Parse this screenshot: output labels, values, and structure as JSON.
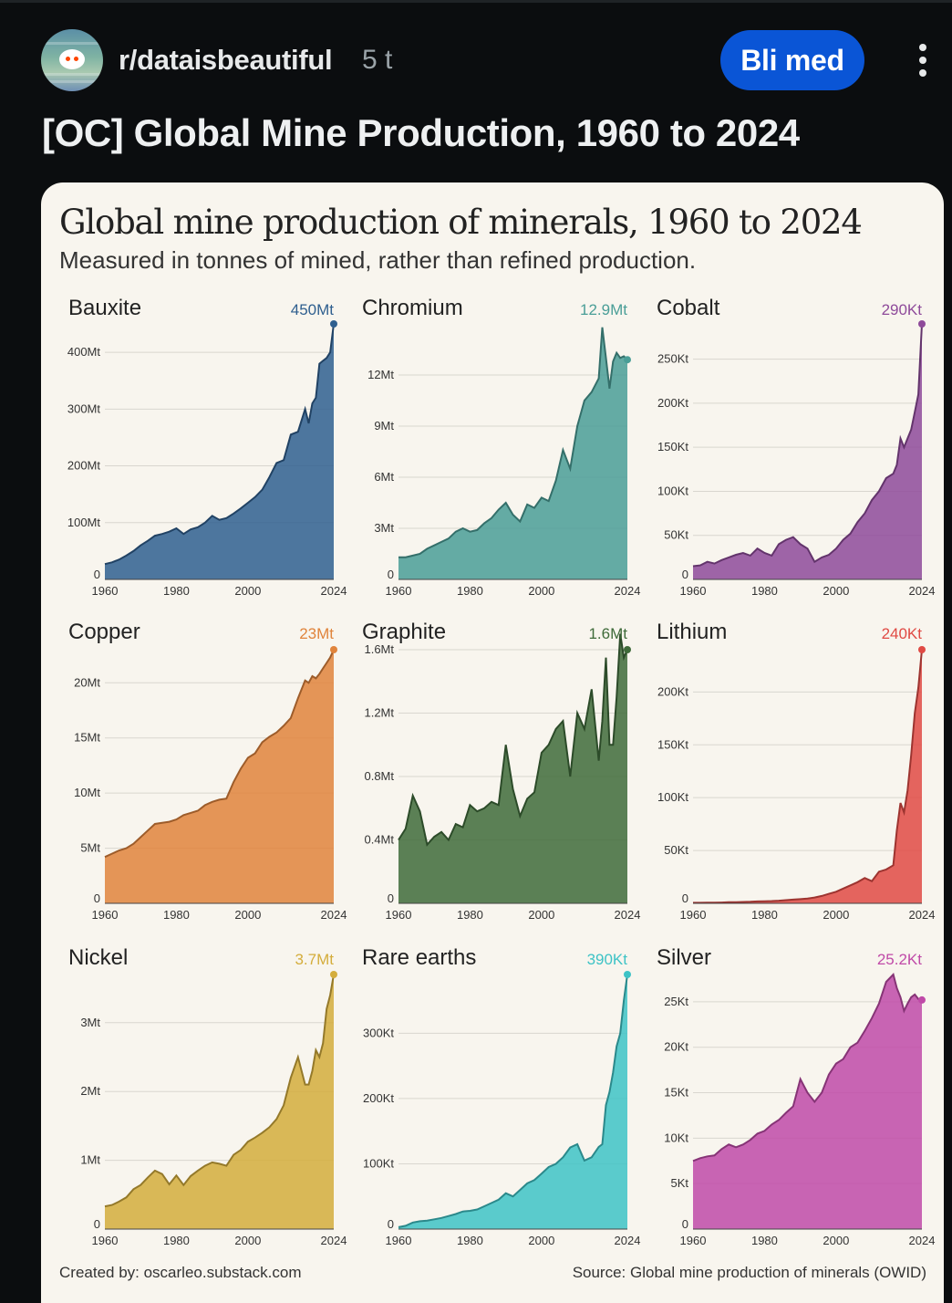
{
  "post": {
    "subreddit": "r/dataisbeautiful",
    "age": "5 t",
    "join_label": "Bli med",
    "title": "[OC] Global Mine Production, 1960 to 2024"
  },
  "figure": {
    "title": "Global mine production of minerals, 1960 to 2024",
    "subtitle": "Measured in tonnes of mined, rather than refined production.",
    "credit": "Created by: oscarleo.substack.com",
    "source": "Source: Global mine production of minerals (OWID)"
  },
  "chart_data": [
    {
      "type": "area",
      "name": "Bauxite",
      "latest_label": "450Mt",
      "color": "#2f5f8f",
      "x_range": [
        1960,
        2024
      ],
      "x_ticks": [
        "1960",
        "1980",
        "2000",
        "2024"
      ],
      "ylim": [
        0,
        450
      ],
      "y_ticks": [
        {
          "v": 0,
          "label": "0"
        },
        {
          "v": 100,
          "label": "100Mt"
        },
        {
          "v": 200,
          "label": "200Mt"
        },
        {
          "v": 300,
          "label": "300Mt"
        },
        {
          "v": 400,
          "label": "400Mt"
        }
      ],
      "series": [
        {
          "x": [
            1960,
            1962,
            1964,
            1966,
            1968,
            1970,
            1972,
            1974,
            1976,
            1978,
            1980,
            1982,
            1984,
            1986,
            1988,
            1990,
            1992,
            1994,
            1996,
            1998,
            2000,
            2002,
            2004,
            2006,
            2008,
            2010,
            2012,
            2014,
            2016,
            2017,
            2018,
            2019,
            2020,
            2021,
            2022,
            2023,
            2024
          ],
          "y": [
            27,
            30,
            35,
            42,
            50,
            60,
            68,
            77,
            80,
            84,
            90,
            80,
            88,
            92,
            100,
            112,
            105,
            108,
            116,
            125,
            135,
            145,
            158,
            180,
            205,
            210,
            255,
            260,
            300,
            275,
            310,
            320,
            380,
            385,
            390,
            400,
            450
          ]
        }
      ]
    },
    {
      "type": "area",
      "name": "Chromium",
      "latest_label": "12.9Mt",
      "color": "#4a9e97",
      "x_range": [
        1960,
        2024
      ],
      "x_ticks": [
        "1960",
        "1980",
        "2000",
        "2024"
      ],
      "ylim": [
        0,
        15
      ],
      "y_ticks": [
        {
          "v": 0,
          "label": "0"
        },
        {
          "v": 3,
          "label": "3Mt"
        },
        {
          "v": 6,
          "label": "6Mt"
        },
        {
          "v": 9,
          "label": "9Mt"
        },
        {
          "v": 12,
          "label": "12Mt"
        }
      ],
      "series": [
        {
          "x": [
            1960,
            1962,
            1964,
            1966,
            1968,
            1970,
            1972,
            1974,
            1976,
            1978,
            1980,
            1982,
            1984,
            1986,
            1988,
            1990,
            1992,
            1994,
            1996,
            1998,
            2000,
            2002,
            2004,
            2006,
            2008,
            2010,
            2012,
            2014,
            2016,
            2017,
            2018,
            2019,
            2020,
            2021,
            2022,
            2023,
            2024
          ],
          "y": [
            1.3,
            1.3,
            1.4,
            1.5,
            1.8,
            2.0,
            2.2,
            2.4,
            2.8,
            3.0,
            2.8,
            2.9,
            3.3,
            3.6,
            4.1,
            4.5,
            3.8,
            3.4,
            4.4,
            4.2,
            4.8,
            4.6,
            5.8,
            7.6,
            6.5,
            9.0,
            10.5,
            11.0,
            11.8,
            14.8,
            13.0,
            11.2,
            12.8,
            13.3,
            13.0,
            13.1,
            12.9
          ]
        }
      ]
    },
    {
      "type": "area",
      "name": "Cobalt",
      "latest_label": "290Kt",
      "color": "#8e4a9a",
      "x_range": [
        1960,
        2024
      ],
      "x_ticks": [
        "1960",
        "1980",
        "2000",
        "2024"
      ],
      "ylim": [
        0,
        290
      ],
      "y_ticks": [
        {
          "v": 0,
          "label": "0"
        },
        {
          "v": 50,
          "label": "50Kt"
        },
        {
          "v": 100,
          "label": "100Kt"
        },
        {
          "v": 150,
          "label": "150Kt"
        },
        {
          "v": 200,
          "label": "200Kt"
        },
        {
          "v": 250,
          "label": "250Kt"
        }
      ],
      "series": [
        {
          "x": [
            1960,
            1962,
            1964,
            1966,
            1968,
            1970,
            1972,
            1974,
            1976,
            1978,
            1980,
            1982,
            1984,
            1986,
            1988,
            1990,
            1992,
            1994,
            1996,
            1998,
            2000,
            2002,
            2004,
            2006,
            2008,
            2010,
            2012,
            2014,
            2016,
            2017,
            2018,
            2019,
            2020,
            2021,
            2022,
            2023,
            2024
          ],
          "y": [
            15,
            16,
            20,
            18,
            22,
            25,
            28,
            30,
            27,
            35,
            30,
            27,
            40,
            45,
            48,
            40,
            35,
            20,
            25,
            28,
            35,
            45,
            52,
            65,
            75,
            90,
            100,
            115,
            120,
            130,
            160,
            150,
            160,
            170,
            190,
            210,
            290
          ]
        }
      ]
    },
    {
      "type": "area",
      "name": "Copper",
      "latest_label": "23Mt",
      "color": "#e0843c",
      "x_range": [
        1960,
        2024
      ],
      "x_ticks": [
        "1960",
        "1980",
        "2000",
        "2024"
      ],
      "ylim": [
        0,
        23
      ],
      "y_ticks": [
        {
          "v": 0,
          "label": "0"
        },
        {
          "v": 5,
          "label": "5Mt"
        },
        {
          "v": 10,
          "label": "10Mt"
        },
        {
          "v": 15,
          "label": "15Mt"
        },
        {
          "v": 20,
          "label": "20Mt"
        }
      ],
      "series": [
        {
          "x": [
            1960,
            1962,
            1964,
            1966,
            1968,
            1970,
            1972,
            1974,
            1976,
            1978,
            1980,
            1982,
            1984,
            1986,
            1988,
            1990,
            1992,
            1994,
            1996,
            1998,
            2000,
            2002,
            2004,
            2006,
            2008,
            2010,
            2012,
            2014,
            2016,
            2017,
            2018,
            2019,
            2020,
            2021,
            2022,
            2023,
            2024
          ],
          "y": [
            4.2,
            4.5,
            4.8,
            5.0,
            5.4,
            6.0,
            6.6,
            7.2,
            7.3,
            7.4,
            7.6,
            8.0,
            8.2,
            8.4,
            8.9,
            9.2,
            9.4,
            9.5,
            11.0,
            12.2,
            13.2,
            13.6,
            14.6,
            15.1,
            15.5,
            16.1,
            16.8,
            18.6,
            20.2,
            20.0,
            20.6,
            20.4,
            20.8,
            21.3,
            21.8,
            22.3,
            23.0
          ]
        }
      ]
    },
    {
      "type": "area",
      "name": "Graphite",
      "latest_label": "1.6Mt",
      "color": "#3f6b3a",
      "x_range": [
        1960,
        2024
      ],
      "x_ticks": [
        "1960",
        "1980",
        "2000",
        "2024"
      ],
      "ylim": [
        0,
        1.6
      ],
      "y_ticks": [
        {
          "v": 0,
          "label": "0"
        },
        {
          "v": 0.4,
          "label": "0.4Mt"
        },
        {
          "v": 0.8,
          "label": "0.8Mt"
        },
        {
          "v": 1.2,
          "label": "1.2Mt"
        },
        {
          "v": 1.6,
          "label": "1.6Mt"
        }
      ],
      "series": [
        {
          "x": [
            1960,
            1962,
            1964,
            1966,
            1968,
            1970,
            1972,
            1974,
            1976,
            1978,
            1980,
            1982,
            1984,
            1986,
            1988,
            1990,
            1992,
            1994,
            1996,
            1998,
            2000,
            2002,
            2004,
            2006,
            2008,
            2010,
            2012,
            2014,
            2016,
            2017,
            2018,
            2019,
            2020,
            2021,
            2022,
            2023,
            2024
          ],
          "y": [
            0.4,
            0.47,
            0.68,
            0.58,
            0.37,
            0.42,
            0.45,
            0.4,
            0.5,
            0.48,
            0.62,
            0.58,
            0.6,
            0.64,
            0.62,
            1.0,
            0.72,
            0.55,
            0.66,
            0.7,
            0.95,
            1.0,
            1.1,
            1.15,
            0.8,
            1.2,
            1.1,
            1.35,
            0.9,
            1.15,
            1.55,
            1.0,
            1.0,
            1.3,
            1.7,
            1.55,
            1.6
          ]
        }
      ]
    },
    {
      "type": "area",
      "name": "Lithium",
      "latest_label": "240Kt",
      "color": "#e04a44",
      "x_range": [
        1960,
        2024
      ],
      "x_ticks": [
        "1960",
        "1980",
        "2000",
        "2024"
      ],
      "ylim": [
        0,
        240
      ],
      "y_ticks": [
        {
          "v": 0,
          "label": "0"
        },
        {
          "v": 50,
          "label": "50Kt"
        },
        {
          "v": 100,
          "label": "100Kt"
        },
        {
          "v": 150,
          "label": "150Kt"
        },
        {
          "v": 200,
          "label": "200Kt"
        }
      ],
      "series": [
        {
          "x": [
            1960,
            1962,
            1964,
            1966,
            1968,
            1970,
            1972,
            1974,
            1976,
            1978,
            1980,
            1982,
            1984,
            1986,
            1988,
            1990,
            1992,
            1994,
            1996,
            1998,
            2000,
            2002,
            2004,
            2006,
            2008,
            2010,
            2012,
            2014,
            2016,
            2017,
            2018,
            2019,
            2020,
            2021,
            2022,
            2023,
            2024
          ],
          "y": [
            0.5,
            0.5,
            0.6,
            0.6,
            0.8,
            1.0,
            1.1,
            1.3,
            1.5,
            1.8,
            2.0,
            2.2,
            2.5,
            3.0,
            3.5,
            4.0,
            4.5,
            5.5,
            7.0,
            9.0,
            11.0,
            14.0,
            17.0,
            20.0,
            24.0,
            21.0,
            30.0,
            32.0,
            36.0,
            69.0,
            95.0,
            86.0,
            107.0,
            140.0,
            180.0,
            204.0,
            240.0
          ]
        }
      ]
    },
    {
      "type": "area",
      "name": "Nickel",
      "latest_label": "3.7Mt",
      "color": "#d4ad3c",
      "x_range": [
        1960,
        2024
      ],
      "x_ticks": [
        "1960",
        "1980",
        "2000",
        "2024"
      ],
      "ylim": [
        0,
        3.7
      ],
      "y_ticks": [
        {
          "v": 0,
          "label": "0"
        },
        {
          "v": 1,
          "label": "1Mt"
        },
        {
          "v": 2,
          "label": "2Mt"
        },
        {
          "v": 3,
          "label": "3Mt"
        }
      ],
      "series": [
        {
          "x": [
            1960,
            1962,
            1964,
            1966,
            1968,
            1970,
            1972,
            1974,
            1976,
            1978,
            1980,
            1982,
            1984,
            1986,
            1988,
            1990,
            1992,
            1994,
            1996,
            1998,
            2000,
            2002,
            2004,
            2006,
            2008,
            2010,
            2012,
            2014,
            2016,
            2017,
            2018,
            2019,
            2020,
            2021,
            2022,
            2023,
            2024
          ],
          "y": [
            0.33,
            0.35,
            0.4,
            0.46,
            0.58,
            0.64,
            0.75,
            0.85,
            0.8,
            0.65,
            0.78,
            0.64,
            0.77,
            0.85,
            0.92,
            0.97,
            0.95,
            0.92,
            1.08,
            1.15,
            1.27,
            1.33,
            1.4,
            1.48,
            1.6,
            1.8,
            2.2,
            2.5,
            2.1,
            2.1,
            2.3,
            2.6,
            2.5,
            2.7,
            3.2,
            3.4,
            3.7
          ]
        }
      ]
    },
    {
      "type": "area",
      "name": "Rare earths",
      "latest_label": "390Kt",
      "color": "#3ec3c6",
      "x_range": [
        1960,
        2024
      ],
      "x_ticks": [
        "1960",
        "1980",
        "2000",
        "2024"
      ],
      "ylim": [
        0,
        390
      ],
      "y_ticks": [
        {
          "v": 0,
          "label": "0"
        },
        {
          "v": 100,
          "label": "100Kt"
        },
        {
          "v": 200,
          "label": "200Kt"
        },
        {
          "v": 300,
          "label": "300Kt"
        }
      ],
      "series": [
        {
          "x": [
            1960,
            1962,
            1964,
            1966,
            1968,
            1970,
            1972,
            1974,
            1976,
            1978,
            1980,
            1982,
            1984,
            1986,
            1988,
            1990,
            1992,
            1994,
            1996,
            1998,
            2000,
            2002,
            2004,
            2006,
            2008,
            2010,
            2012,
            2014,
            2016,
            2017,
            2018,
            2019,
            2020,
            2021,
            2022,
            2023,
            2024
          ],
          "y": [
            3,
            5,
            10,
            12,
            13,
            15,
            17,
            20,
            23,
            27,
            28,
            30,
            35,
            40,
            45,
            55,
            50,
            60,
            70,
            75,
            85,
            95,
            100,
            110,
            125,
            130,
            105,
            110,
            126,
            130,
            190,
            210,
            240,
            280,
            300,
            350,
            390
          ]
        }
      ]
    },
    {
      "type": "area",
      "name": "Silver",
      "latest_label": "25.2Kt",
      "color": "#c04aa8",
      "x_range": [
        1960,
        2024
      ],
      "x_ticks": [
        "1960",
        "1980",
        "2000",
        "2024"
      ],
      "ylim": [
        0,
        28
      ],
      "y_ticks": [
        {
          "v": 0,
          "label": "0"
        },
        {
          "v": 5,
          "label": "5Kt"
        },
        {
          "v": 10,
          "label": "10Kt"
        },
        {
          "v": 15,
          "label": "15Kt"
        },
        {
          "v": 20,
          "label": "20Kt"
        },
        {
          "v": 25,
          "label": "25Kt"
        }
      ],
      "series": [
        {
          "x": [
            1960,
            1962,
            1964,
            1966,
            1968,
            1970,
            1972,
            1974,
            1976,
            1978,
            1980,
            1982,
            1984,
            1986,
            1988,
            1990,
            1992,
            1994,
            1996,
            1998,
            2000,
            2002,
            2004,
            2006,
            2008,
            2010,
            2012,
            2014,
            2016,
            2017,
            2018,
            2019,
            2020,
            2021,
            2022,
            2023,
            2024
          ],
          "y": [
            7.5,
            7.8,
            8.0,
            8.1,
            8.8,
            9.3,
            9.0,
            9.3,
            9.8,
            10.5,
            10.8,
            11.5,
            12.0,
            12.8,
            13.5,
            16.5,
            15.0,
            14.0,
            15.0,
            17.0,
            18.2,
            18.7,
            20.0,
            20.5,
            21.8,
            23.2,
            24.8,
            27.2,
            28.0,
            26.5,
            25.5,
            24.0,
            24.8,
            25.5,
            25.8,
            25.3,
            25.2
          ]
        }
      ]
    }
  ]
}
